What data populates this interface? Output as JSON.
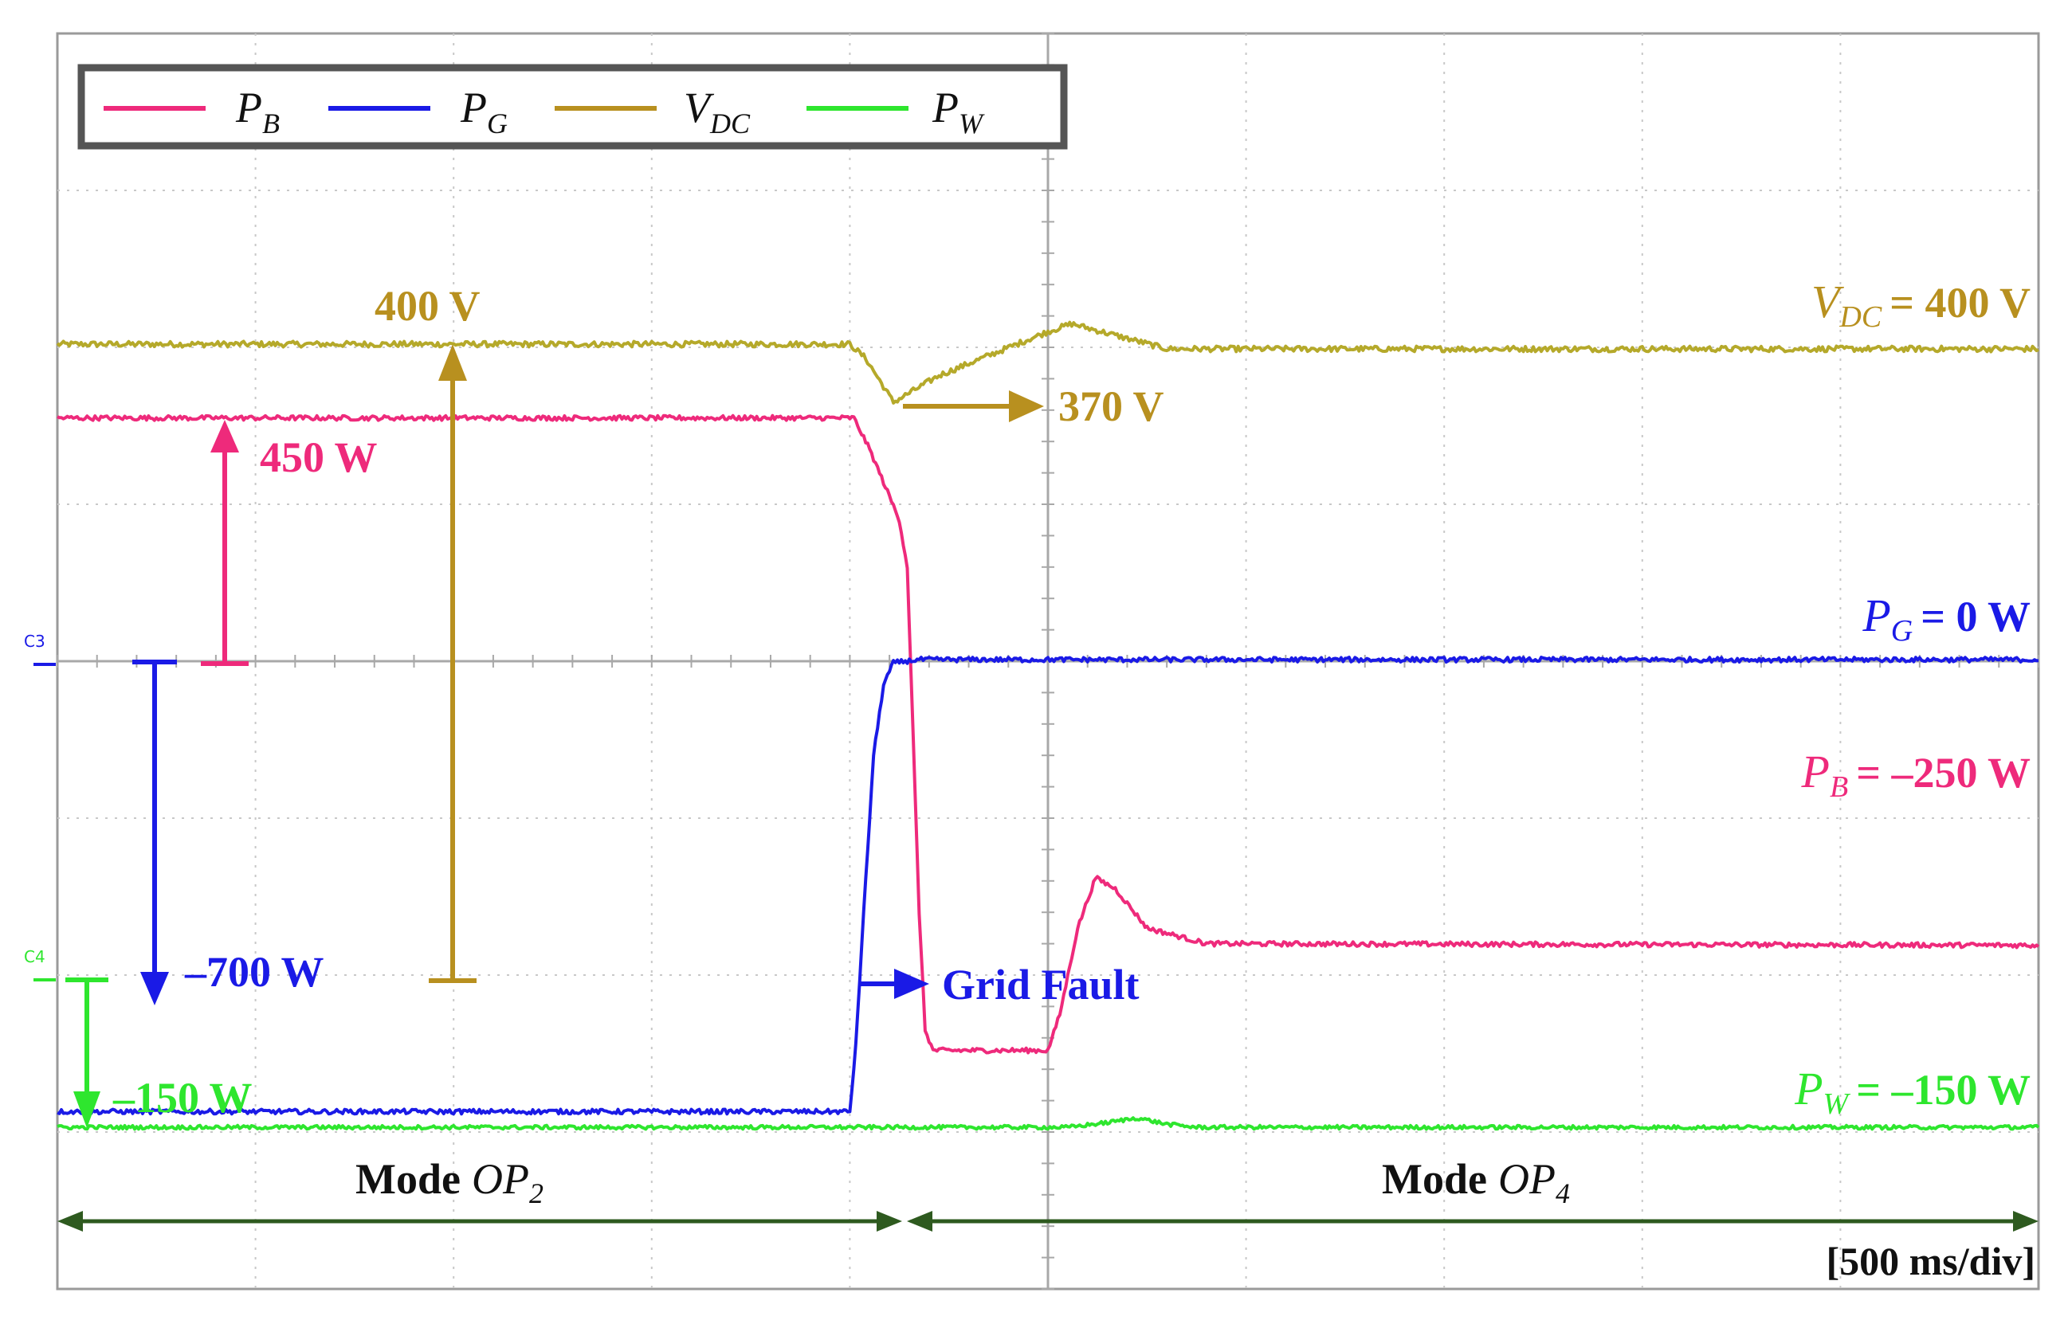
{
  "chart_data": {
    "type": "line",
    "title": "",
    "time_scale": "[500 ms/div]",
    "x_divisions": 10,
    "y_divisions": 8,
    "grid": true,
    "channel_markers": [
      {
        "name": "C3",
        "color": "#1a1ae6"
      },
      {
        "name": "C4",
        "color": "#2ee62e"
      }
    ],
    "legend": {
      "placement": "top-left",
      "entries": [
        {
          "symbol": "P",
          "sub": "B",
          "color": "#ee2a7b"
        },
        {
          "symbol": "P",
          "sub": "G",
          "color": "#1a1ae6"
        },
        {
          "symbol": "V",
          "sub": "DC",
          "color": "#b8901f"
        },
        {
          "symbol": "P",
          "sub": "W",
          "color": "#2ee62e"
        }
      ]
    },
    "series": [
      {
        "key": "VDC",
        "color": "#b5a92a",
        "noise": 0.018,
        "points": [
          [
            0,
            6.02
          ],
          [
            4.0,
            6.02
          ],
          [
            4.08,
            5.93
          ],
          [
            4.22,
            5.65
          ],
          [
            4.45,
            5.82
          ],
          [
            5.0,
            6.1
          ],
          [
            5.12,
            6.15
          ],
          [
            5.3,
            6.09
          ],
          [
            5.6,
            5.99
          ],
          [
            10,
            5.99
          ]
        ]
      },
      {
        "key": "PB",
        "color": "#ee2a7b",
        "noise": 0.015,
        "points": [
          [
            0,
            5.55
          ],
          [
            4.02,
            5.55
          ],
          [
            4.1,
            5.35
          ],
          [
            4.2,
            5.05
          ],
          [
            4.25,
            4.9
          ],
          [
            4.29,
            4.6
          ],
          [
            4.32,
            3.5
          ],
          [
            4.35,
            2.4
          ],
          [
            4.38,
            1.65
          ],
          [
            4.42,
            1.52
          ],
          [
            5.0,
            1.52
          ],
          [
            5.06,
            1.75
          ],
          [
            5.15,
            2.3
          ],
          [
            5.24,
            2.62
          ],
          [
            5.34,
            2.55
          ],
          [
            5.5,
            2.3
          ],
          [
            5.8,
            2.2
          ],
          [
            10,
            2.19
          ]
        ]
      },
      {
        "key": "PG",
        "color": "#1a1ae6",
        "noise": 0.015,
        "points": [
          [
            0,
            1.13
          ],
          [
            4.0,
            1.13
          ],
          [
            4.03,
            1.55
          ],
          [
            4.07,
            2.4
          ],
          [
            4.12,
            3.4
          ],
          [
            4.17,
            3.85
          ],
          [
            4.22,
            3.99
          ],
          [
            4.35,
            4.01
          ],
          [
            10,
            4.01
          ]
        ]
      },
      {
        "key": "PW",
        "color": "#2ee62e",
        "noise": 0.012,
        "points": [
          [
            0,
            1.03
          ],
          [
            5.1,
            1.03
          ],
          [
            5.3,
            1.06
          ],
          [
            5.45,
            1.09
          ],
          [
            5.6,
            1.05
          ],
          [
            5.75,
            1.03
          ],
          [
            10,
            1.03
          ]
        ]
      }
    ],
    "annotations": {
      "dc_400": "400 V",
      "dc_370": "370 V",
      "pb_450": "450 W",
      "pg_700": "–700 W",
      "pw_150": "–150 W",
      "grid_fault": "Grid Fault",
      "vdc_final_sym": "V",
      "vdc_final_sub": "DC",
      "vdc_final_val": "= 400 V",
      "pg_final_sym": "P",
      "pg_final_sub": "G",
      "pg_final_val": "= 0 W",
      "pb_final_sym": "P",
      "pb_final_sub": "B",
      "pb_final_val": "= –250 W",
      "pw_final_sym": "P",
      "pw_final_sub": "W",
      "pw_final_val": "= –150 W",
      "mode_word": "Mode",
      "mode_left_sym": "OP",
      "mode_left_sub": "2",
      "mode_right_sym": "OP",
      "mode_right_sub": "4"
    },
    "colors": {
      "vdc_label": "#b8901f",
      "pb": "#ee2a7b",
      "pg": "#1a1ae6",
      "pw": "#2ee62e",
      "mode_arrow": "#2e5a1f",
      "grid": "#c8c8c8"
    }
  }
}
